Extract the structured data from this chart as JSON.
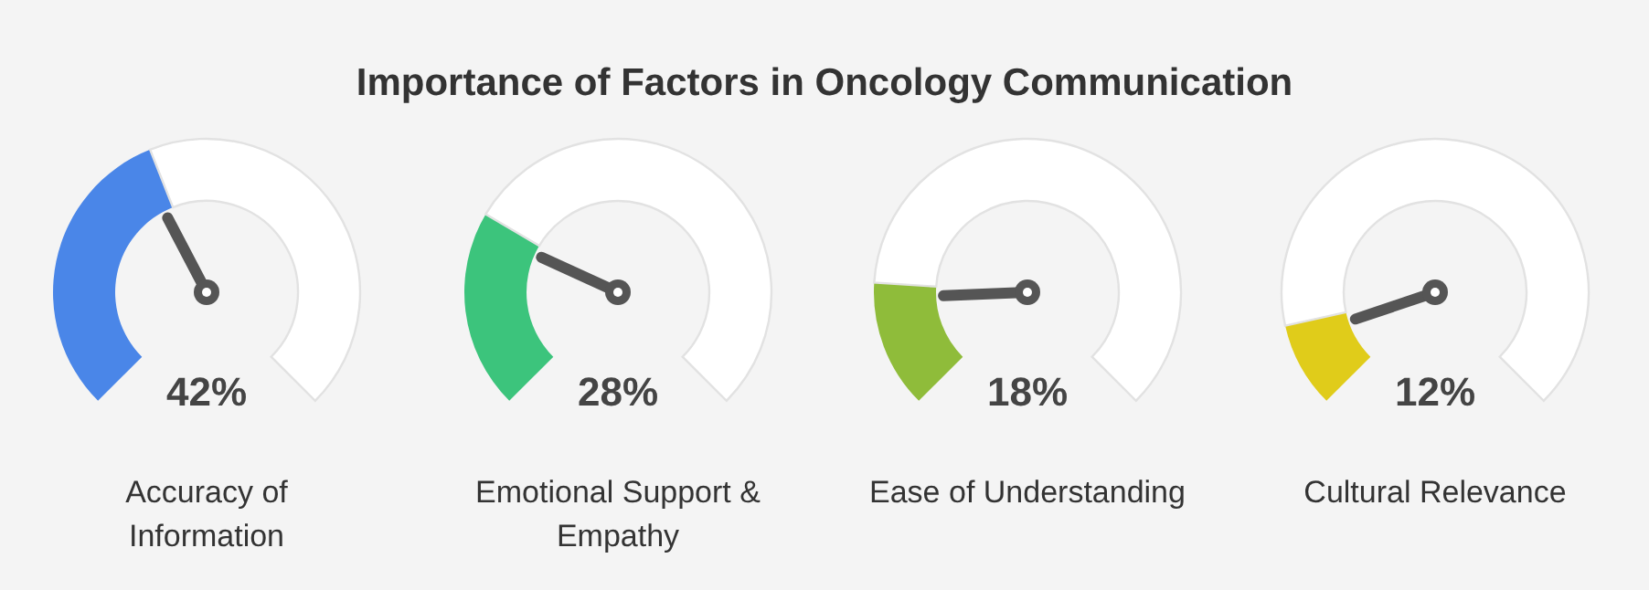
{
  "chart_data": [
    {
      "type": "other",
      "title": "Importance of Factors in Oncology Communication"
    },
    {
      "type": "donut",
      "title": "Accuracy of Information",
      "categories": [
        null,
        null
      ],
      "values": [
        42,
        58
      ],
      "colors": [
        "#4a86e8",
        "#ffffff"
      ],
      "annotations": [
        "42%"
      ]
    },
    {
      "type": "donut",
      "title": "Emotional Support & Empathy",
      "categories": [
        null,
        null
      ],
      "values": [
        28,
        72
      ],
      "colors": [
        "#3cc47c",
        "#ffffff"
      ],
      "annotations": [
        "28%"
      ]
    },
    {
      "type": "donut",
      "title": "Ease of Understanding",
      "categories": [
        null,
        null
      ],
      "values": [
        18,
        82
      ],
      "colors": [
        "#8fbc3a",
        "#ffffff"
      ],
      "annotations": [
        "18%"
      ]
    },
    {
      "type": "donut",
      "title": "Cultural Relevance",
      "categories": [
        null,
        null
      ],
      "values": [
        12,
        88
      ],
      "colors": [
        "#e0cc1a",
        "#ffffff"
      ],
      "annotations": [
        "12%"
      ]
    }
  ]
}
